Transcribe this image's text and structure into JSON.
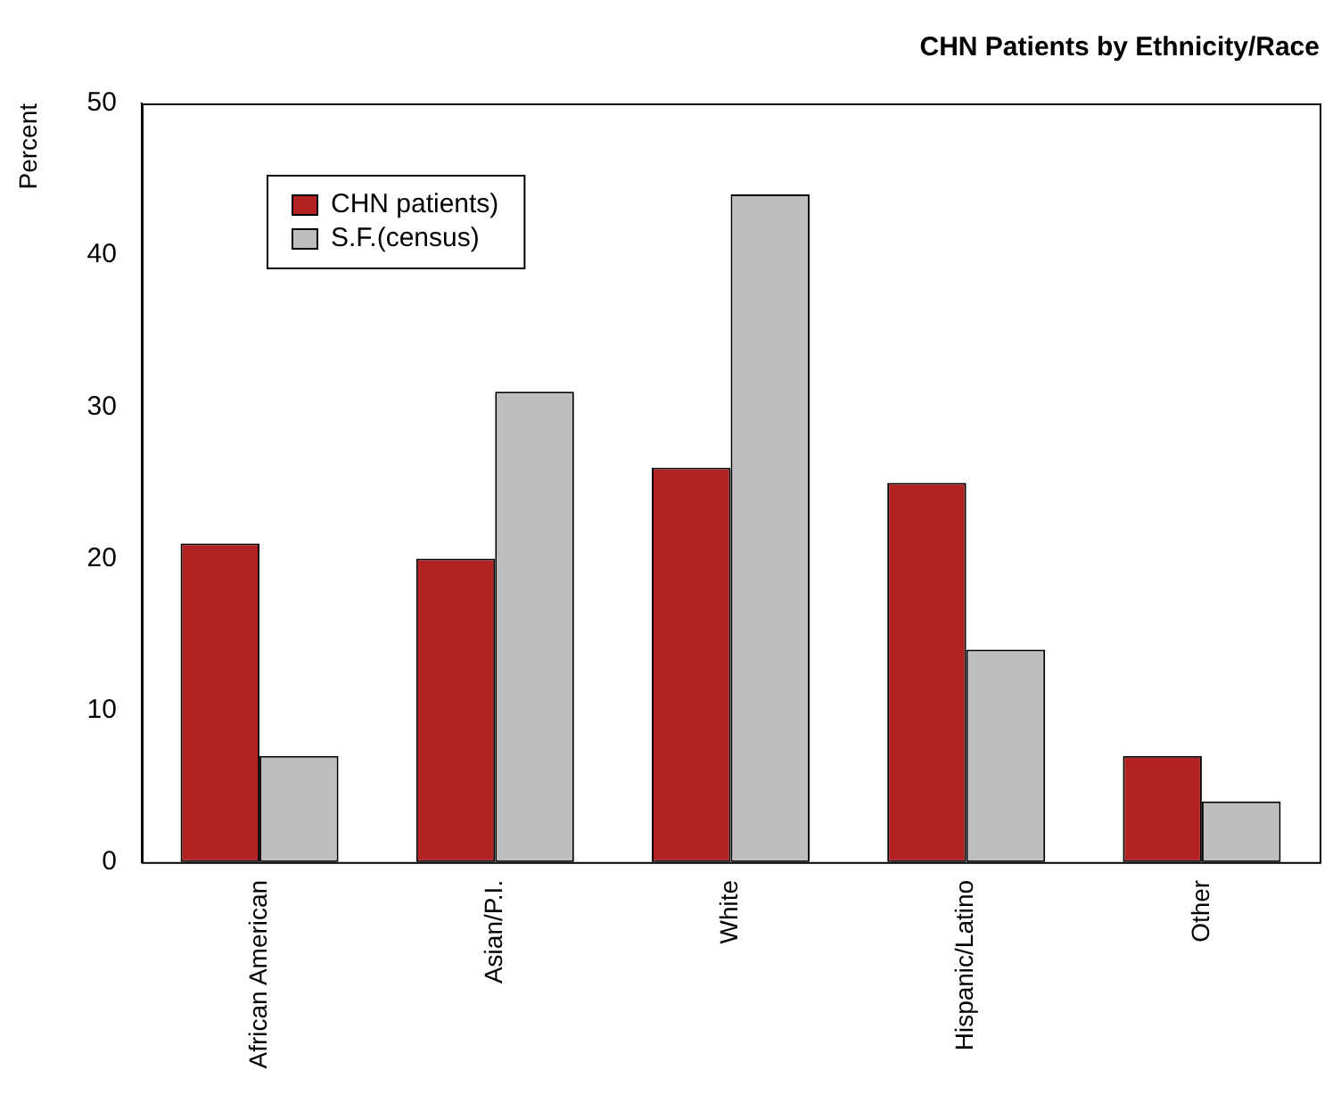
{
  "chart_data": {
    "type": "bar",
    "title": "CHN Patients by Ethnicity/Race",
    "ylabel": "Percent",
    "categories": [
      "African American",
      "Asian/P.I.",
      "White",
      "Hispanic/Latino",
      "Other"
    ],
    "series": [
      {
        "name": "CHN patients)",
        "color": "#b22222",
        "values": [
          21,
          20,
          26,
          25,
          7
        ]
      },
      {
        "name": "S.F.(census)",
        "color": "#bebebe",
        "values": [
          7,
          31,
          44,
          14,
          4
        ]
      }
    ],
    "ylim": [
      0,
      50
    ],
    "yticks": [
      0,
      10,
      20,
      30,
      40,
      50
    ],
    "grid": false,
    "legend": "top left"
  }
}
